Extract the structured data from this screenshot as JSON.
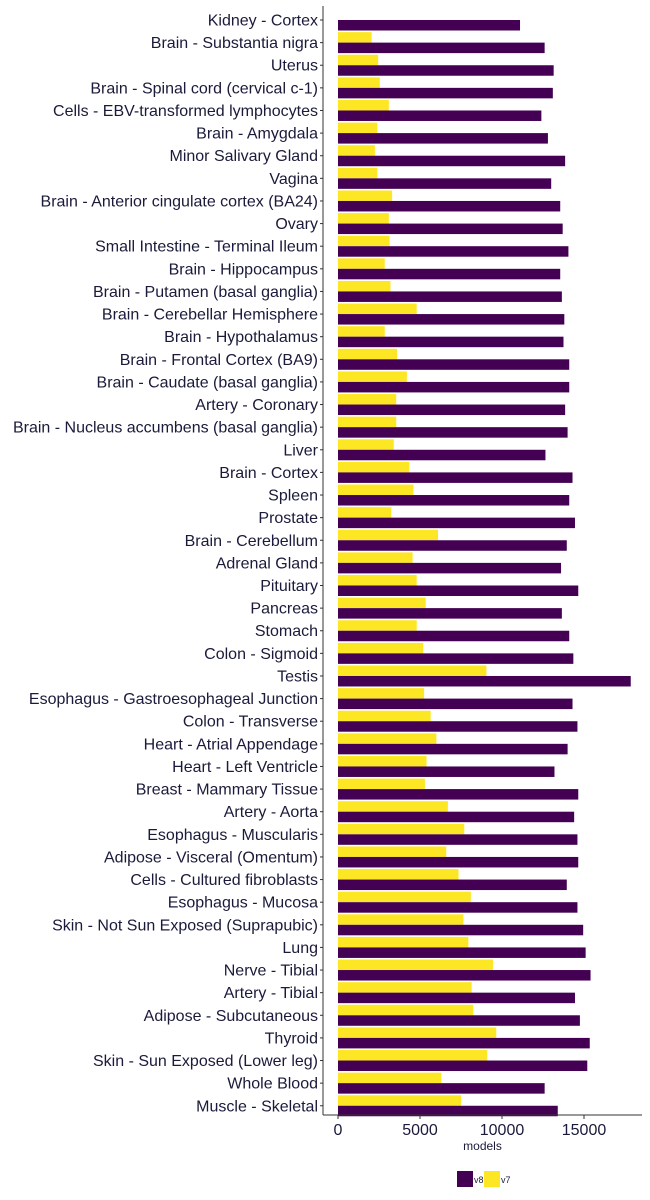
{
  "chart_data": {
    "type": "bar",
    "orientation": "horizontal",
    "xlabel": "models",
    "ylabel": "",
    "title": "",
    "xlim": [
      0,
      18000
    ],
    "xticks": [
      0,
      5000,
      10000,
      15000
    ],
    "grid": false,
    "legend_position": "bottom",
    "categories": [
      "Kidney - Cortex",
      "Brain - Substantia nigra",
      "Uterus",
      "Brain - Spinal cord (cervical c-1)",
      "Cells - EBV-transformed lymphocytes",
      "Brain - Amygdala",
      "Minor Salivary Gland",
      "Vagina",
      "Brain - Anterior cingulate cortex (BA24)",
      "Ovary",
      "Small Intestine - Terminal Ileum",
      "Brain - Hippocampus",
      "Brain - Putamen (basal ganglia)",
      "Brain - Cerebellar Hemisphere",
      "Brain - Hypothalamus",
      "Brain - Frontal Cortex (BA9)",
      "Brain - Caudate (basal ganglia)",
      "Artery - Coronary",
      "Brain - Nucleus accumbens (basal ganglia)",
      "Liver",
      "Brain - Cortex",
      "Spleen",
      "Prostate",
      "Brain - Cerebellum",
      "Adrenal Gland",
      "Pituitary",
      "Pancreas",
      "Stomach",
      "Colon - Sigmoid",
      "Testis",
      "Esophagus - Gastroesophageal Junction",
      "Colon - Transverse",
      "Heart - Atrial Appendage",
      "Heart - Left Ventricle",
      "Breast - Mammary Tissue",
      "Artery - Aorta",
      "Esophagus - Muscularis",
      "Adipose - Visceral (Omentum)",
      "Cells - Cultured fibroblasts",
      "Esophagus - Mucosa",
      "Skin - Not Sun Exposed (Suprapubic)",
      "Lung",
      "Nerve - Tibial",
      "Artery - Tibial",
      "Adipose - Subcutaneous",
      "Thyroid",
      "Skin - Sun Exposed (Lower leg)",
      "Whole Blood",
      "Muscle - Skeletal"
    ],
    "series": [
      {
        "name": "v7",
        "color": "#fde725",
        "values": [
          0,
          2050,
          2450,
          2550,
          3100,
          2400,
          2250,
          2400,
          3300,
          3100,
          3150,
          2850,
          3200,
          4800,
          2850,
          3600,
          4200,
          3550,
          3550,
          3400,
          4350,
          4600,
          3250,
          6100,
          4550,
          4800,
          5350,
          4800,
          5200,
          9050,
          5250,
          5650,
          6000,
          5400,
          5300,
          6700,
          7700,
          6600,
          7350,
          8100,
          7650,
          7950,
          9450,
          8150,
          8250,
          9650,
          9100,
          6300,
          7500
        ]
      },
      {
        "name": "v8",
        "color": "#440154",
        "values": [
          11100,
          12600,
          13150,
          13100,
          12400,
          12800,
          13850,
          13000,
          13550,
          13700,
          14050,
          13550,
          13650,
          13800,
          13750,
          14100,
          14100,
          13850,
          14000,
          12650,
          14300,
          14100,
          14450,
          13950,
          13600,
          14650,
          13650,
          14100,
          14350,
          17850,
          14300,
          14600,
          14000,
          13200,
          14650,
          14400,
          14600,
          14650,
          13950,
          14600,
          14950,
          15100,
          15400,
          14450,
          14750,
          15350,
          15200,
          12600,
          13400
        ]
      }
    ]
  }
}
